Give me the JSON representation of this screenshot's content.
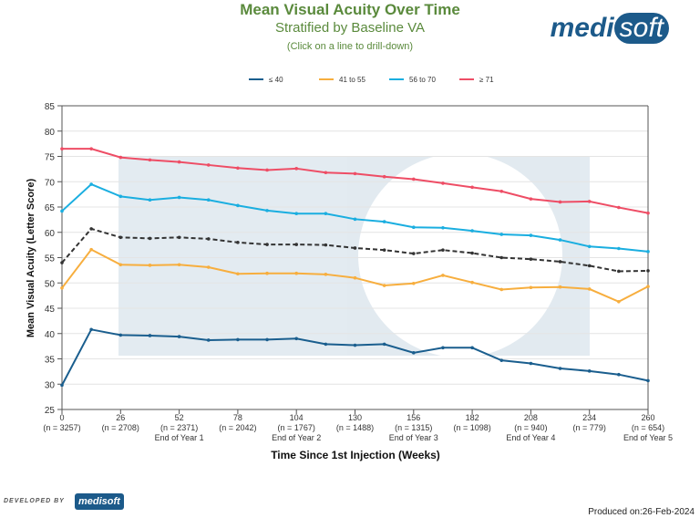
{
  "header": {
    "title": "Mean Visual Acuity Over Time",
    "subtitle": "Stratified by Baseline VA",
    "hint": "(Click on a line to drill-down)",
    "logo": "medisoft"
  },
  "footer": {
    "developed_by": "DEVELOPED BY",
    "logo": "medisoft",
    "produced": "Produced on:26-Feb-2024"
  },
  "chart_data": {
    "type": "line",
    "title": "Mean Visual Acuity Over Time",
    "xlabel": "Time Since 1st Injection (Weeks)",
    "ylabel": "Mean Visual Acuity (Letter Score)",
    "ylim": [
      25,
      85
    ],
    "xlim": [
      0,
      260
    ],
    "yticks": [
      25,
      30,
      35,
      40,
      45,
      50,
      55,
      60,
      65,
      70,
      75,
      80,
      85
    ],
    "xticks": [
      {
        "v": 0,
        "n": "(n = 3257)",
        "year": ""
      },
      {
        "v": 26,
        "n": "(n = 2708)",
        "year": ""
      },
      {
        "v": 52,
        "n": "(n = 2371)",
        "year": "End of Year 1"
      },
      {
        "v": 78,
        "n": "(n = 2042)",
        "year": ""
      },
      {
        "v": 104,
        "n": "(n = 1767)",
        "year": "End of Year 2"
      },
      {
        "v": 130,
        "n": "(n = 1488)",
        "year": ""
      },
      {
        "v": 156,
        "n": "(n = 1315)",
        "year": "End of Year 3"
      },
      {
        "v": 182,
        "n": "(n = 1098)",
        "year": ""
      },
      {
        "v": 208,
        "n": "(n = 940)",
        "year": "End of Year 4"
      },
      {
        "v": 234,
        "n": "(n = 779)",
        "year": ""
      },
      {
        "v": 260,
        "n": "(n = 654)",
        "year": "End of Year 5"
      }
    ],
    "grid": true,
    "legend": "top-center",
    "x": [
      0,
      13,
      26,
      39,
      52,
      65,
      78,
      91,
      104,
      117,
      130,
      143,
      156,
      169,
      182,
      195,
      208,
      221,
      234,
      247,
      260
    ],
    "series": [
      {
        "name": "≤ 40",
        "color": "#1a5e8e",
        "values": [
          29.8,
          40.8,
          39.7,
          39.6,
          39.4,
          38.7,
          38.8,
          38.8,
          39.0,
          37.9,
          37.7,
          37.9,
          36.2,
          37.2,
          37.2,
          34.7,
          34.1,
          33.1,
          32.6,
          31.9,
          30.7
        ]
      },
      {
        "name": "41 to 55",
        "color": "#f7ae3e",
        "values": [
          49.0,
          56.6,
          53.6,
          53.5,
          53.6,
          53.1,
          51.8,
          51.9,
          51.9,
          51.7,
          51.0,
          49.5,
          49.9,
          51.5,
          50.1,
          48.7,
          49.1,
          49.2,
          48.8,
          46.3,
          49.3
        ]
      },
      {
        "name": "56 to 70",
        "color": "#1aaee0",
        "values": [
          64.2,
          69.5,
          67.1,
          66.4,
          66.9,
          66.4,
          65.3,
          64.3,
          63.7,
          63.7,
          62.6,
          62.1,
          61.0,
          60.9,
          60.3,
          59.6,
          59.4,
          58.5,
          57.2,
          56.8,
          56.2
        ]
      },
      {
        "name": "≥ 71",
        "color": "#ee4d65",
        "values": [
          76.5,
          76.5,
          74.8,
          74.3,
          73.9,
          73.3,
          72.7,
          72.3,
          72.6,
          71.8,
          71.6,
          71.0,
          70.5,
          69.7,
          68.9,
          68.1,
          66.6,
          66.0,
          66.1,
          64.9,
          63.8
        ]
      },
      {
        "name": "Overall",
        "color": "#333333",
        "dashed": true,
        "legend": false,
        "values": [
          54.0,
          60.7,
          59.0,
          58.8,
          59.0,
          58.7,
          58.0,
          57.6,
          57.6,
          57.5,
          56.9,
          56.5,
          55.8,
          56.5,
          55.9,
          55.0,
          54.7,
          54.2,
          53.4,
          52.3,
          52.4
        ]
      }
    ]
  }
}
